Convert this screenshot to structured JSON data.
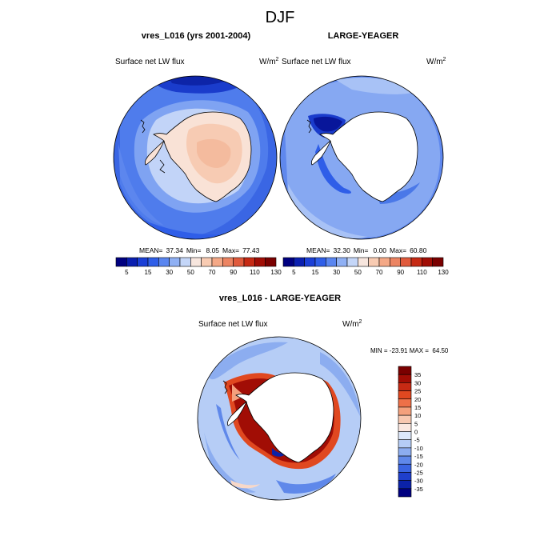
{
  "figure": {
    "title": "DJF",
    "colors": {
      "ocean_blue": "#4a78e8",
      "ocean_light": "#8fb0f0",
      "land_white": "#ffffff",
      "land_peach": "#f8d4c0",
      "coast": "#000000"
    }
  },
  "chart_data": [
    {
      "id": "panel-model",
      "type": "heatmap",
      "projection": "south-polar-stereographic",
      "title": "vres_L016 (yrs 2001-2004)",
      "left_label": "Surface net LW flux",
      "right_label": "W/m",
      "right_label_sup": "2",
      "stats": {
        "mean_label": "MEAN=",
        "mean": "37.34",
        "min_label": "Min=",
        "min": "8.05",
        "max_label": "Max=",
        "max": "77.43"
      },
      "colorbar": {
        "orientation": "horizontal",
        "tick_labels": [
          "5",
          "15",
          "30",
          "50",
          "70",
          "90",
          "110",
          "130"
        ],
        "colors": [
          "#000080",
          "#0a1fb0",
          "#1b3fd6",
          "#2f5ee8",
          "#5a86f0",
          "#8fb0f4",
          "#c4d6f8",
          "#f7e6de",
          "#f8cbb2",
          "#f4a886",
          "#ec8462",
          "#e05a3c",
          "#c62a14",
          "#a10d05",
          "#7a0000"
        ]
      }
    },
    {
      "id": "panel-obs",
      "type": "heatmap",
      "projection": "south-polar-stereographic",
      "title": "LARGE-YEAGER",
      "left_label": "Surface net LW flux",
      "right_label": "W/m",
      "right_label_sup": "2",
      "stats": {
        "mean_label": "MEAN=",
        "mean": "32.30",
        "min_label": "Min=",
        "min": "0.00",
        "max_label": "Max=",
        "max": "60.80"
      },
      "colorbar": {
        "orientation": "horizontal",
        "tick_labels": [
          "5",
          "15",
          "30",
          "50",
          "70",
          "90",
          "110",
          "130"
        ],
        "colors": [
          "#000080",
          "#0a1fb0",
          "#1b3fd6",
          "#2f5ee8",
          "#5a86f0",
          "#8fb0f4",
          "#c4d6f8",
          "#f7e6de",
          "#f8cbb2",
          "#f4a886",
          "#ec8462",
          "#e05a3c",
          "#c62a14",
          "#a10d05",
          "#7a0000"
        ]
      }
    },
    {
      "id": "panel-diff",
      "type": "heatmap",
      "projection": "south-polar-stereographic",
      "title": "vres_L016 - LARGE-YEAGER",
      "left_label": "Surface net LW flux",
      "right_label": "W/m",
      "right_label_sup": "2",
      "stats_text": "MIN = -23.91 MAX =  64.50",
      "colorbar": {
        "orientation": "vertical",
        "tick_labels": [
          "35",
          "30",
          "25",
          "20",
          "15",
          "10",
          "5",
          "0",
          "-5",
          "-10",
          "-15",
          "-20",
          "-25",
          "-30",
          "-35"
        ],
        "colors": [
          "#7a0000",
          "#a10d05",
          "#c62a14",
          "#e04820",
          "#ee7048",
          "#f4a07c",
          "#f8c8b0",
          "#fbe8e0",
          "#dde8fa",
          "#b6cdf6",
          "#8cadf0",
          "#5f88ea",
          "#3a64e2",
          "#1f3fcc",
          "#0b22a8",
          "#000080"
        ]
      }
    }
  ]
}
